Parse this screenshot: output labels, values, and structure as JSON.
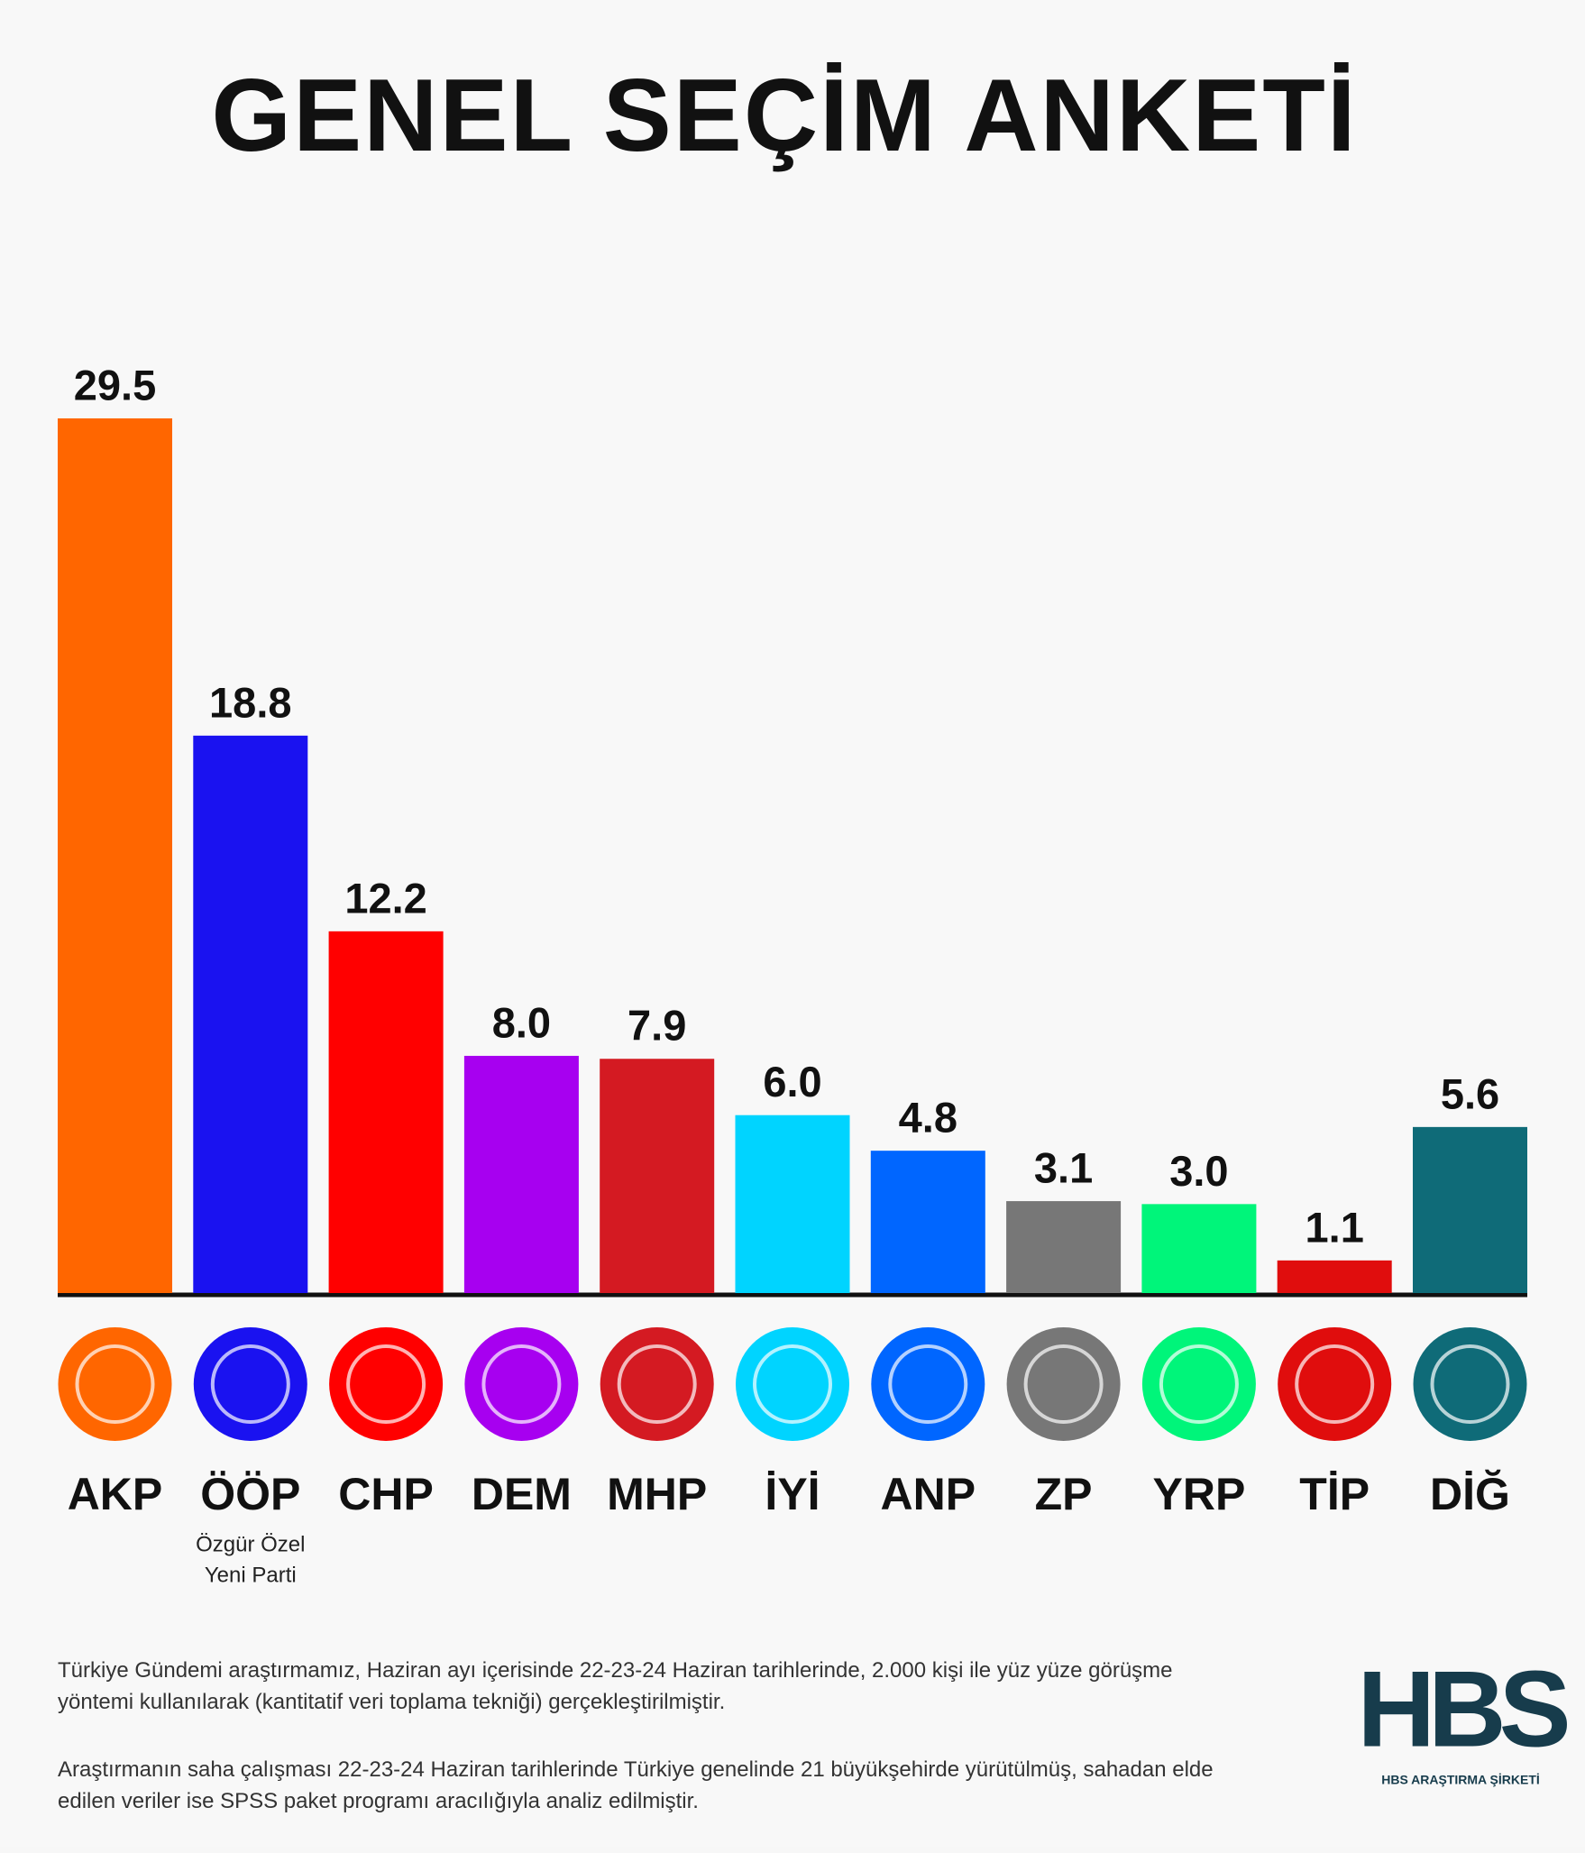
{
  "chart_data": {
    "type": "bar",
    "title": "GENEL SEÇİM ANKETİ",
    "categories": [
      "AKP",
      "ÖÖP",
      "CHP",
      "DEM",
      "MHP",
      "İYİ",
      "ANP",
      "ZP",
      "YRP",
      "TİP",
      "DİĞ"
    ],
    "values": [
      29.5,
      18.8,
      12.2,
      8,
      7.9,
      6,
      4.8,
      3.1,
      3,
      1.1,
      5.6
    ],
    "value_labels": [
      "29.5",
      "18.8",
      "12.2",
      "8.0",
      "7.9",
      "6.0",
      "4.8",
      "3.1",
      "3.0",
      "1.1",
      "5.6"
    ],
    "colors": [
      "#ff6600",
      "#1a12f0",
      "#ff0000",
      "#a700f0",
      "#d41a22",
      "#00d4ff",
      "#0066ff",
      "#777777",
      "#00f57a",
      "#e00d0d",
      "#0f6b78"
    ],
    "annotation": {
      "category": 1,
      "lines": [
        "Özgür Özel",
        "Yeni Parti"
      ]
    },
    "notes": [
      "Türkiye Gündemi araştırmamız, Haziran ayı içerisinde 22-23-24 Haziran tarihlerinde, 2.000 kişi ile yüz yüze görüşme yöntemi kullanılarak (kantitatif veri toplama tekniği) gerçekleştirilmiştir.",
      "Araştırmanın saha çalışması 22-23-24 Haziran tarihlerinde Türkiye genelinde 21 büyükşehirde yürütülmüş, sahadan elde edilen veriler ise SPSS paket programı aracılığıyla analiz edilmiştir."
    ],
    "logo": {
      "text": "HBS",
      "caption": "HBS ARAŞTIRMA ŞİRKETİ"
    }
  }
}
